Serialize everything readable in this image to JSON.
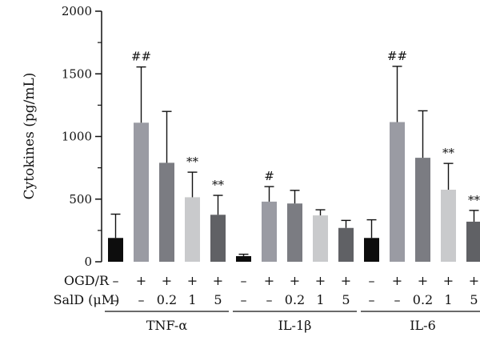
{
  "chart_data": {
    "type": "bar",
    "title": "",
    "ylabel": "Cytokines (pg/mL)",
    "ylim": [
      0,
      2000
    ],
    "yticks": [
      "0",
      "500",
      "1000",
      "1500",
      "2000"
    ],
    "grid": false,
    "legend": "none",
    "row_labels": [
      "OGD/R",
      "SalD (μM)"
    ],
    "conditions": {
      "ogdr": [
        "–",
        "+",
        "+",
        "+",
        "+"
      ],
      "sald": [
        "–",
        "–",
        "0.2",
        "1",
        "5"
      ]
    },
    "bar_colors": [
      "#0d0d0d",
      "#9a9ba3",
      "#7b7c82",
      "#c9cacc",
      "#606165"
    ],
    "groups": [
      {
        "name": "TNF-α",
        "values": [
          190,
          1110,
          790,
          515,
          375
        ],
        "errors": [
          190,
          445,
          410,
          200,
          155
        ],
        "sig": [
          "",
          "##",
          "",
          "**",
          "**"
        ]
      },
      {
        "name": "IL-1β",
        "values": [
          45,
          480,
          465,
          370,
          270
        ],
        "errors": [
          15,
          120,
          105,
          45,
          60
        ],
        "sig": [
          "",
          "#",
          "",
          "",
          ""
        ]
      },
      {
        "name": "IL-6",
        "values": [
          190,
          1115,
          830,
          575,
          320
        ],
        "errors": [
          145,
          445,
          375,
          210,
          90
        ],
        "sig": [
          "",
          "##",
          "",
          "**",
          "**"
        ]
      }
    ]
  }
}
